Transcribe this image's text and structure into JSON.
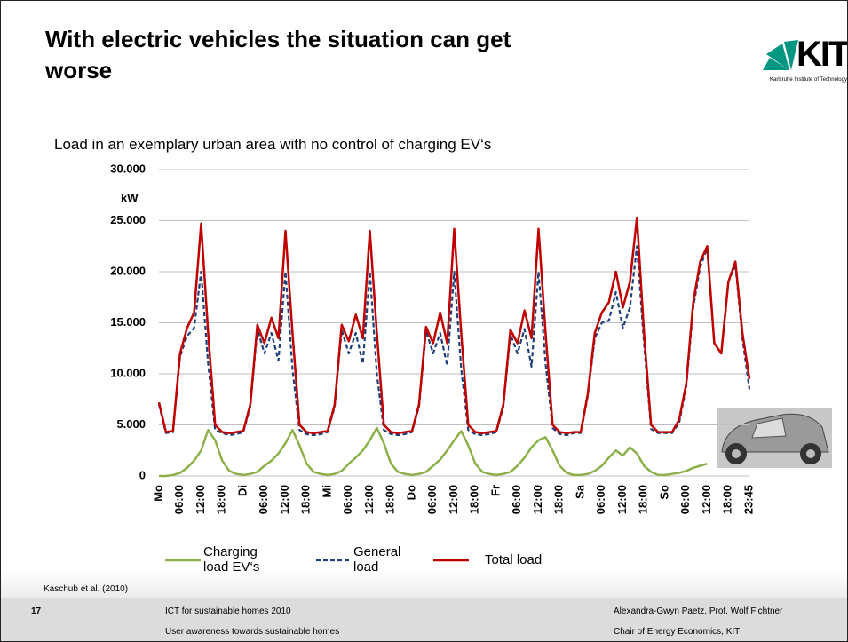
{
  "slide": {
    "title": "With electric vehicles the situation can get worse",
    "logo": {
      "text": "KIT",
      "subtitle": "Karlsruhe Institute of Technology"
    },
    "source": "Kaschub et al. (2010)",
    "footer": {
      "page": "17",
      "left_1": "ICT for sustainable homes 2010",
      "left_2": "User awareness towards sustainable homes",
      "right_1": "Alexandra-Gwyn Paetz, Prof. Wolf Fichtner",
      "right_2": "Chair of Energy Economics, KIT"
    }
  },
  "chart_data": {
    "type": "line",
    "title": "Load in an exemplary urban area with no control of charging EV‘s",
    "y_label": "kW",
    "categories": [
      "Mo",
      null,
      null,
      "06:00",
      null,
      null,
      "12:00",
      null,
      null,
      "18:00",
      null,
      null,
      "Di",
      null,
      null,
      "06:00",
      null,
      null,
      "12:00",
      null,
      null,
      "18:00",
      null,
      null,
      "Mi",
      null,
      null,
      "06:00",
      null,
      null,
      "12:00",
      null,
      null,
      "18:00",
      null,
      null,
      "Do",
      null,
      null,
      "06:00",
      null,
      null,
      "12:00",
      null,
      null,
      "18:00",
      null,
      null,
      "Fr",
      null,
      null,
      "06:00",
      null,
      null,
      "12:00",
      null,
      null,
      "18:00",
      null,
      null,
      "Sa",
      null,
      null,
      "06:00",
      null,
      null,
      "12:00",
      null,
      null,
      "18:00",
      null,
      null,
      "So",
      null,
      null,
      "06:00",
      null,
      null,
      "12:00",
      null,
      null,
      "18:00",
      null,
      null,
      "23:45"
    ],
    "series": [
      {
        "name": "Charging load EV‘s",
        "color": "#8db04b",
        "dash": false,
        "values": [
          0,
          0,
          100,
          300,
          800,
          1500,
          2500,
          4500,
          3500,
          1500,
          500,
          200,
          100,
          200,
          400,
          1000,
          1500,
          2200,
          3200,
          4500,
          3000,
          1200,
          400,
          200,
          100,
          200,
          500,
          1200,
          1800,
          2500,
          3500,
          4700,
          3200,
          1200,
          400,
          200,
          100,
          200,
          400,
          1000,
          1600,
          2500,
          3500,
          4400,
          3000,
          1200,
          400,
          200,
          100,
          200,
          400,
          1000,
          1800,
          2800,
          3500,
          3800,
          2500,
          1000,
          300,
          100,
          100,
          200,
          500,
          1000,
          1800,
          2500,
          2000,
          2800,
          2200,
          1000,
          400,
          100,
          100,
          200,
          300,
          500,
          800,
          1000,
          1200,
          null,
          null,
          null,
          null,
          null,
          null
        ]
      },
      {
        "name": "General load",
        "color": "#1f3f7a",
        "dash": true,
        "values": [
          7000,
          4200,
          4300,
          11700,
          13700,
          14500,
          20000,
          11000,
          4500,
          4200,
          4000,
          4100,
          4300,
          6800,
          14400,
          12000,
          14000,
          11300,
          20000,
          10500,
          4500,
          4100,
          4000,
          4100,
          4300,
          6800,
          14300,
          12000,
          14000,
          11000,
          20000,
          10000,
          4500,
          4100,
          4000,
          4100,
          4300,
          6800,
          14200,
          12000,
          14000,
          10800,
          20000,
          10500,
          4500,
          4100,
          4000,
          4100,
          4300,
          6800,
          13900,
          12000,
          14400,
          10700,
          20000,
          11000,
          4700,
          4100,
          4000,
          4200,
          4200,
          7800,
          13500,
          15000,
          15200,
          18000,
          14500,
          16500,
          22500,
          13000,
          4600,
          4200,
          4200,
          4200,
          5200,
          8700,
          16500,
          20500,
          22300,
          13000,
          12000,
          19000,
          20700,
          13500,
          8500
        ]
      },
      {
        "name": "Total load",
        "color": "#c00000",
        "dash": false,
        "values": [
          7200,
          4300,
          4400,
          12000,
          14500,
          16000,
          24700,
          14000,
          5000,
          4300,
          4200,
          4300,
          4400,
          7000,
          14800,
          13000,
          15500,
          13500,
          24000,
          14000,
          5000,
          4300,
          4200,
          4300,
          4400,
          7000,
          14800,
          13200,
          15800,
          13500,
          24000,
          14000,
          5000,
          4300,
          4200,
          4300,
          4400,
          7000,
          14600,
          13000,
          16000,
          13000,
          24200,
          14000,
          5000,
          4300,
          4200,
          4300,
          4400,
          7000,
          14300,
          13000,
          16200,
          13500,
          24200,
          14000,
          5000,
          4300,
          4200,
          4300,
          4300,
          8000,
          14000,
          16000,
          17000,
          20000,
          16500,
          19000,
          25300,
          14000,
          5000,
          4300,
          4300,
          4300,
          5500,
          9000,
          17000,
          21000,
          22500,
          13000,
          12000,
          19000,
          21000,
          14000,
          9500
        ]
      }
    ],
    "ylim": [
      0,
      30000
    ],
    "yticks": [
      0,
      {
        "value": 5000,
        "label": "5.000"
      },
      {
        "value": 10000,
        "label": "10.000"
      },
      {
        "value": 15000,
        "label": "15.000"
      },
      {
        "value": 20000,
        "label": "20.000"
      },
      {
        "value": 25000,
        "label": "25.000"
      },
      {
        "value": 30000,
        "label": "30.000"
      }
    ],
    "grid": true
  }
}
